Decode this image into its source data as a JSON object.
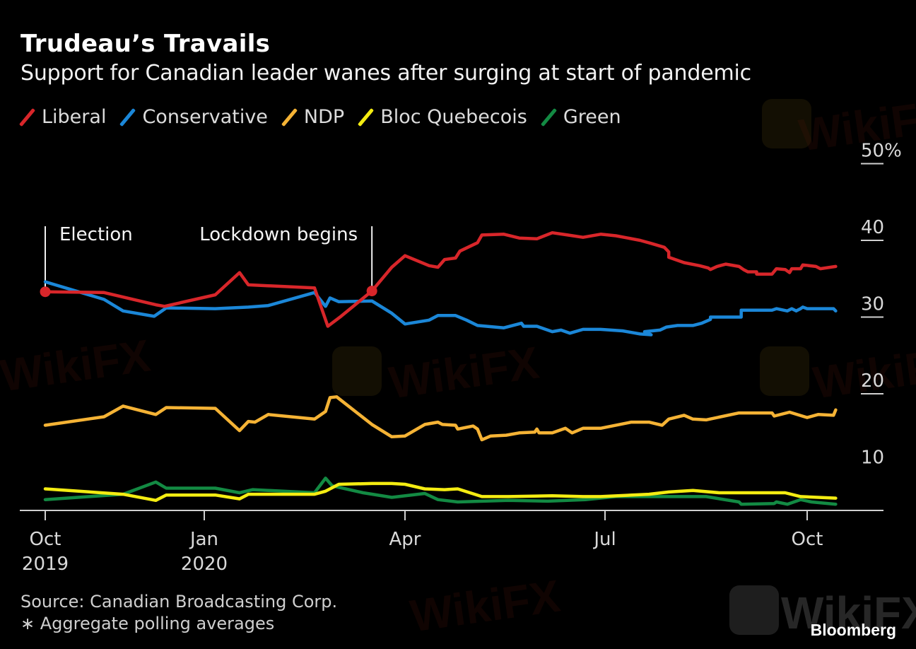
{
  "header": {
    "title": "Trudeau’s Travails",
    "subtitle": "Support for Canadian leader wanes after surging at start of pandemic"
  },
  "footer": {
    "source": "Source: Canadian Broadcasting Corp.",
    "note": "∗ Aggregate polling averages",
    "brand": "Bloomberg"
  },
  "watermark": "WikiFX",
  "chart_data": {
    "type": "line",
    "title": "Trudeau’s Travails",
    "subtitle": "Support for Canadian leader wanes after surging at start of pandemic",
    "x_unit": "days since 2019-10-01",
    "xlabel": "",
    "ylabel": "",
    "ylim": [
      5,
      50
    ],
    "y_ticks": [
      10,
      20,
      30,
      40,
      50
    ],
    "y_tick_labels": [
      "10",
      "20",
      "30",
      "40",
      "50%"
    ],
    "y_axis_side": "right",
    "x_ticks": [
      {
        "day": 0,
        "label": "Oct",
        "sub": "2019"
      },
      {
        "day": 92,
        "label": "Jan",
        "sub": "2020"
      },
      {
        "day": 183,
        "label": "Apr",
        "sub": ""
      },
      {
        "day": 274,
        "label": "Jul",
        "sub": ""
      },
      {
        "day": 366,
        "label": "Oct",
        "sub": ""
      }
    ],
    "grid": false,
    "legend_position": "top-left",
    "annotations": [
      {
        "label": "Election",
        "day": 0,
        "series": "Liberal",
        "value": 33.3,
        "text_side": "right"
      },
      {
        "label": "Lockdown begins",
        "day": 168,
        "series": "Liberal",
        "value": 33.4,
        "text_side": "left"
      }
    ],
    "series": [
      {
        "name": "Liberal",
        "color": "#d8262a",
        "points": [
          [
            0,
            33.3
          ],
          [
            34,
            33.2
          ],
          [
            64,
            31.6
          ],
          [
            69,
            31.4
          ],
          [
            97,
            32.9
          ],
          [
            108,
            35.8
          ],
          [
            112,
            34.2
          ],
          [
            142,
            33.8
          ],
          [
            148,
            28.8
          ],
          [
            154,
            30.1
          ],
          [
            168,
            33.4
          ],
          [
            177,
            36.5
          ],
          [
            183,
            38.0
          ],
          [
            194,
            36.7
          ],
          [
            198,
            36.5
          ],
          [
            201,
            37.5
          ],
          [
            206,
            37.7
          ],
          [
            208,
            38.6
          ],
          [
            216,
            39.7
          ],
          [
            218,
            40.7
          ],
          [
            228,
            40.8
          ],
          [
            235,
            40.3
          ],
          [
            243,
            40.2
          ],
          [
            250,
            41.0
          ],
          [
            257,
            40.7
          ],
          [
            264,
            40.4
          ],
          [
            272,
            40.8
          ],
          [
            279,
            40.6
          ],
          [
            290,
            40.0
          ],
          [
            295,
            39.6
          ],
          [
            301,
            39.1
          ],
          [
            303,
            38.5
          ],
          [
            303,
            37.8
          ],
          [
            310,
            37.1
          ],
          [
            317,
            36.7
          ],
          [
            321,
            36.4
          ],
          [
            322,
            36.2
          ],
          [
            325,
            36.6
          ],
          [
            329,
            36.9
          ],
          [
            335,
            36.6
          ],
          [
            337,
            36.2
          ],
          [
            339,
            35.9
          ],
          [
            343,
            35.9
          ],
          [
            343,
            35.6
          ],
          [
            350,
            35.6
          ],
          [
            352,
            36.3
          ],
          [
            356,
            36.2
          ],
          [
            358,
            35.8
          ],
          [
            359,
            36.3
          ],
          [
            363,
            36.3
          ],
          [
            364,
            36.8
          ],
          [
            370,
            36.6
          ],
          [
            372,
            36.3
          ],
          [
            379,
            36.6
          ]
        ]
      },
      {
        "name": "Conservative",
        "color": "#1b87d8",
        "points": [
          [
            0,
            34.6
          ],
          [
            34,
            32.3
          ],
          [
            45,
            30.8
          ],
          [
            63,
            30.1
          ],
          [
            70,
            31.2
          ],
          [
            97,
            31.1
          ],
          [
            112,
            31.3
          ],
          [
            121,
            31.5
          ],
          [
            142,
            33.2
          ],
          [
            147,
            31.4
          ],
          [
            149,
            32.5
          ],
          [
            153,
            32.0
          ],
          [
            168,
            32.1
          ],
          [
            177,
            30.5
          ],
          [
            183,
            29.1
          ],
          [
            194,
            29.6
          ],
          [
            198,
            30.2
          ],
          [
            206,
            30.2
          ],
          [
            211,
            29.6
          ],
          [
            216,
            28.9
          ],
          [
            228,
            28.6
          ],
          [
            236,
            29.2
          ],
          [
            237,
            28.8
          ],
          [
            243,
            28.8
          ],
          [
            250,
            28.1
          ],
          [
            254,
            28.3
          ],
          [
            258,
            27.9
          ],
          [
            264,
            28.4
          ],
          [
            272,
            28.4
          ],
          [
            282,
            28.2
          ],
          [
            286,
            28.0
          ],
          [
            290,
            27.8
          ],
          [
            295,
            27.7
          ],
          [
            292,
            28.1
          ],
          [
            299,
            28.3
          ],
          [
            302,
            28.7
          ],
          [
            307,
            28.9
          ],
          [
            314,
            28.9
          ],
          [
            318,
            29.2
          ],
          [
            322,
            29.7
          ],
          [
            322,
            30.0
          ],
          [
            336,
            30.0
          ],
          [
            336,
            30.9
          ],
          [
            350,
            30.9
          ],
          [
            352,
            31.1
          ],
          [
            357,
            30.8
          ],
          [
            359,
            31.1
          ],
          [
            361,
            30.8
          ],
          [
            363,
            31.1
          ],
          [
            364,
            31.3
          ],
          [
            366,
            31.1
          ],
          [
            378,
            31.1
          ],
          [
            379,
            30.8
          ]
        ]
      },
      {
        "name": "NDP",
        "color": "#f5b335",
        "points": [
          [
            0,
            15.9
          ],
          [
            34,
            17.0
          ],
          [
            45,
            18.4
          ],
          [
            64,
            17.3
          ],
          [
            70,
            18.2
          ],
          [
            97,
            18.1
          ],
          [
            108,
            15.2
          ],
          [
            112,
            16.4
          ],
          [
            115,
            16.3
          ],
          [
            121,
            17.3
          ],
          [
            142,
            16.7
          ],
          [
            147,
            17.7
          ],
          [
            149,
            19.5
          ],
          [
            152,
            19.6
          ],
          [
            168,
            16.0
          ],
          [
            177,
            14.4
          ],
          [
            183,
            14.5
          ],
          [
            192,
            16.0
          ],
          [
            198,
            16.3
          ],
          [
            200,
            16.0
          ],
          [
            206,
            15.9
          ],
          [
            207,
            15.4
          ],
          [
            214,
            15.8
          ],
          [
            216,
            15.4
          ],
          [
            218,
            14.0
          ],
          [
            222,
            14.5
          ],
          [
            229,
            14.6
          ],
          [
            235,
            14.9
          ],
          [
            242,
            15.0
          ],
          [
            243,
            15.4
          ],
          [
            244,
            14.9
          ],
          [
            250,
            14.9
          ],
          [
            256,
            15.5
          ],
          [
            259,
            14.9
          ],
          [
            264,
            15.5
          ],
          [
            272,
            15.5
          ],
          [
            286,
            16.3
          ],
          [
            294,
            16.3
          ],
          [
            300,
            15.9
          ],
          [
            303,
            16.7
          ],
          [
            310,
            17.2
          ],
          [
            314,
            16.7
          ],
          [
            320,
            16.6
          ],
          [
            335,
            17.5
          ],
          [
            343,
            17.5
          ],
          [
            350,
            17.5
          ],
          [
            351,
            17.1
          ],
          [
            358,
            17.6
          ],
          [
            366,
            16.9
          ],
          [
            371,
            17.3
          ],
          [
            378,
            17.2
          ],
          [
            379,
            17.9
          ]
        ]
      },
      {
        "name": "Bloc Quebecois",
        "color": "#f4ec12",
        "points": [
          [
            0,
            7.6
          ],
          [
            45,
            6.9
          ],
          [
            64,
            6.1
          ],
          [
            70,
            6.8
          ],
          [
            97,
            6.8
          ],
          [
            108,
            6.3
          ],
          [
            112,
            6.9
          ],
          [
            142,
            6.9
          ],
          [
            147,
            7.3
          ],
          [
            153,
            8.2
          ],
          [
            168,
            8.3
          ],
          [
            177,
            8.3
          ],
          [
            183,
            8.2
          ],
          [
            192,
            7.6
          ],
          [
            201,
            7.5
          ],
          [
            207,
            7.6
          ],
          [
            218,
            6.6
          ],
          [
            230,
            6.6
          ],
          [
            250,
            6.7
          ],
          [
            264,
            6.6
          ],
          [
            272,
            6.6
          ],
          [
            294,
            6.9
          ],
          [
            303,
            7.2
          ],
          [
            314,
            7.4
          ],
          [
            326,
            7.1
          ],
          [
            350,
            7.1
          ],
          [
            356,
            7.1
          ],
          [
            363,
            6.6
          ],
          [
            379,
            6.4
          ]
        ]
      },
      {
        "name": "Green",
        "color": "#138a43",
        "points": [
          [
            0,
            6.2
          ],
          [
            45,
            6.9
          ],
          [
            64,
            8.5
          ],
          [
            70,
            7.7
          ],
          [
            97,
            7.7
          ],
          [
            108,
            7.1
          ],
          [
            114,
            7.5
          ],
          [
            142,
            7.1
          ],
          [
            147,
            9.0
          ],
          [
            150,
            8.0
          ],
          [
            164,
            7.1
          ],
          [
            177,
            6.5
          ],
          [
            192,
            7.0
          ],
          [
            198,
            6.2
          ],
          [
            207,
            5.9
          ],
          [
            230,
            6.1
          ],
          [
            248,
            6.0
          ],
          [
            265,
            6.2
          ],
          [
            279,
            6.6
          ],
          [
            299,
            6.6
          ],
          [
            320,
            6.6
          ],
          [
            335,
            5.9
          ],
          [
            336,
            5.6
          ],
          [
            351,
            5.7
          ],
          [
            352,
            5.9
          ],
          [
            357,
            5.6
          ],
          [
            363,
            6.2
          ],
          [
            368,
            5.9
          ],
          [
            379,
            5.6
          ]
        ]
      }
    ]
  }
}
